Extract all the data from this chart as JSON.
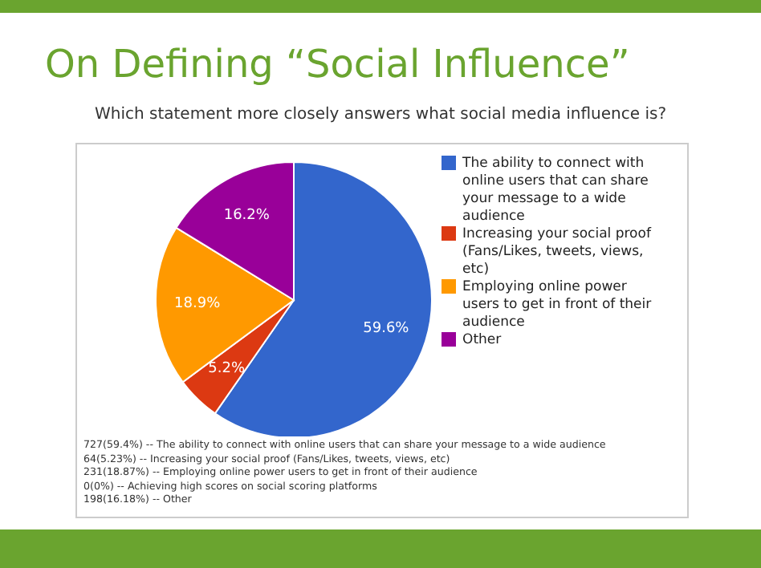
{
  "chart_data": {
    "type": "pie",
    "title": "On Defining “Social Influence”",
    "subtitle": "Which statement more closely answers what social media influence is?",
    "categories": [
      "The ability to connect with online users that can share your message to a wide audience",
      "Increasing your social proof (Fans/Likes, tweets, views, etc)",
      "Employing online power users to get in front of their audience",
      "Other"
    ],
    "values": [
      59.6,
      5.2,
      18.9,
      16.2
    ],
    "value_labels": [
      "59.6%",
      "5.2%",
      "18.9%",
      "16.2%"
    ],
    "colors": [
      "#3366cc",
      "#dc3912",
      "#ff9900",
      "#990099"
    ],
    "legend": "right",
    "annotations": [
      "727(59.4%) -- The ability to connect with online users that can share your message to a wide audience",
      "64(5.23%) -- Increasing your social proof (Fans/Likes, tweets, views, etc)",
      "231(18.87%) -- Employing online power users to get in front of their audience",
      "0(0%) -- Achieving high scores on social scoring platforms",
      "198(16.18%) -- Other"
    ]
  }
}
